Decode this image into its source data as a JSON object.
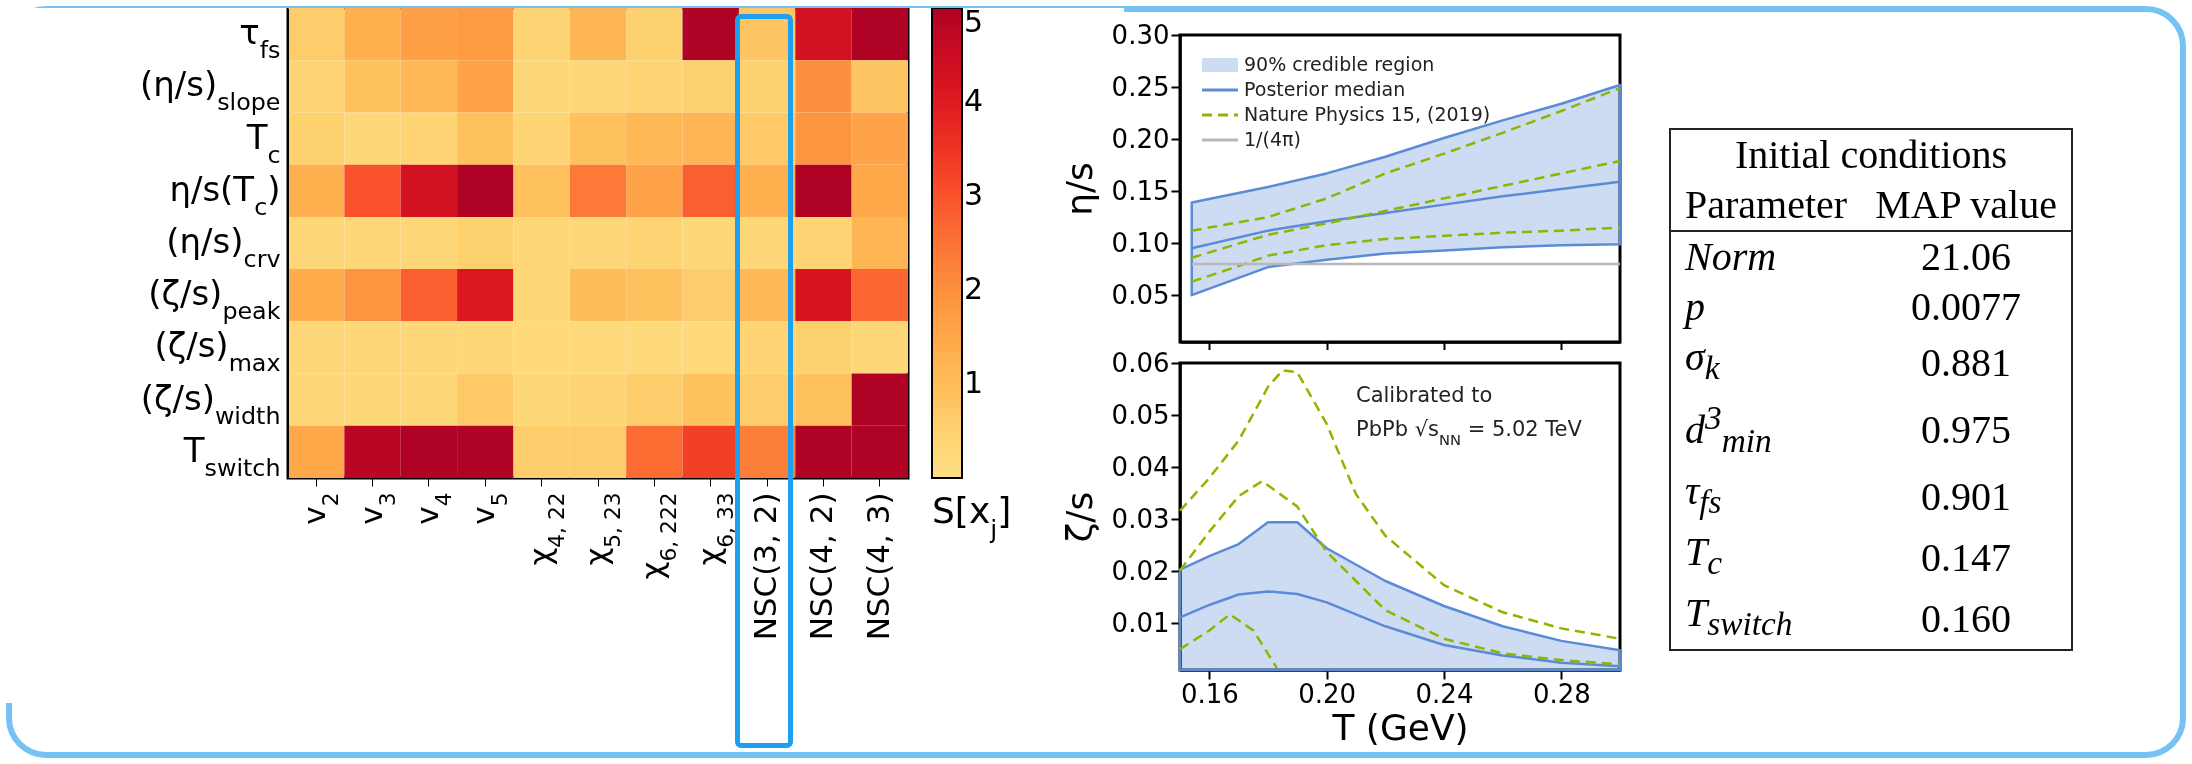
{
  "chart_data": [
    {
      "type": "heatmap",
      "categories": [
        "v$_{2}$",
        "v$_{3}$",
        "v$_{4}$",
        "v$_{5}$",
        "χ$_{4, 22}$",
        "χ$_{5, 23}$",
        "χ$_{6, 222}$",
        "χ$_{6, 33}$",
        "NSC(3, 2)",
        "NSC(4, 2)",
        "NSC(4, 3)"
      ],
      "y_categories": [
        "τ$_{fs}$",
        "(η/s)$_{slope}$",
        "T$_{c}$",
        "η/s(T$_{c}$)",
        "(η/s)$_{crv}$",
        "(ζ/s)$_{peak}$",
        "(ζ/s)$_{max}$",
        "(ζ/s)$_{width}$",
        "T$_{switch}$"
      ],
      "cells": [
        [
          0.6,
          1.3,
          1.7,
          1.8,
          0.4,
          1.2,
          0.5,
          5,
          0.8,
          4.3,
          5
        ],
        [
          0.4,
          0.9,
          1.1,
          1.6,
          0.3,
          0.3,
          0.4,
          0.5,
          0.5,
          2.0,
          0.8
        ],
        [
          0.5,
          0.3,
          0.4,
          0.9,
          0.4,
          0.9,
          1.1,
          1.2,
          0.7,
          1.9,
          1.6
        ],
        [
          1.3,
          3.0,
          4.3,
          5,
          0.9,
          2.4,
          1.6,
          2.8,
          1.3,
          5,
          1.5
        ],
        [
          0.3,
          0.3,
          0.3,
          0.5,
          0.3,
          0.3,
          0.4,
          0.3,
          0.3,
          0.4,
          1.2
        ],
        [
          1.4,
          1.9,
          2.8,
          4.1,
          0.3,
          1.0,
          0.9,
          0.6,
          1.1,
          4.2,
          2.7
        ],
        [
          0.3,
          0.3,
          0.3,
          0.3,
          0.2,
          0.2,
          0.2,
          0.2,
          0.4,
          0.5,
          0.3
        ],
        [
          0.3,
          0.3,
          0.3,
          0.7,
          0.3,
          0.4,
          0.6,
          0.9,
          0.6,
          0.9,
          5
        ],
        [
          1.5,
          4.8,
          5,
          5,
          0.6,
          0.6,
          2.6,
          3.3,
          2.3,
          5,
          5
        ]
      ],
      "clim": [
        0,
        5
      ],
      "cticks": [
        1,
        2,
        3,
        4,
        5
      ],
      "clabel": "S[x$_{j}$]"
    },
    {
      "type": "line",
      "ylabel": "η/s",
      "xlim": [
        0.15,
        0.3
      ],
      "ylim": [
        0.005,
        0.3
      ],
      "xticks": [
        0.16,
        0.2,
        0.24,
        0.28
      ],
      "yticks": [
        0.05,
        {
          "value": 0.1,
          "label": "0.10"
        },
        0.15,
        {
          "value": 0.2,
          "label": "0.20"
        },
        0.25,
        {
          "value": 0.3,
          "label": "0.30"
        }
      ],
      "tick_labels": "y",
      "legend": "top left",
      "annotations": [
        "90% credible region"
      ],
      "series": [
        {
          "name": "Posterior median",
          "type": "line",
          "color": "#5b8bd6",
          "x": [
            0.154,
            0.18,
            0.2,
            0.22,
            0.24,
            0.26,
            0.28,
            0.3
          ],
          "values": [
            0.095,
            0.112,
            0.121,
            0.129,
            0.137,
            0.145,
            0.152,
            0.159
          ],
          "lower": [
            0.05,
            0.077,
            0.084,
            0.09,
            0.093,
            0.096,
            0.098,
            0.099
          ],
          "upper": [
            0.139,
            0.154,
            0.167,
            0.183,
            0.201,
            0.218,
            0.234,
            0.252
          ]
        },
        {
          "name": "Nature Physics 15, (2019)",
          "type": "line",
          "color": "#8db600",
          "line_style": "dashed",
          "x": [
            0.154,
            0.18,
            0.2,
            0.22,
            0.24,
            0.26,
            0.28,
            0.3
          ],
          "values": [
            0.112,
            0.125,
            0.143,
            0.167,
            0.186,
            0.206,
            0.227,
            0.249
          ]
        },
        {
          "type": "line",
          "color": "#8db600",
          "line_style": "dashed",
          "x": [
            0.154,
            0.18,
            0.2,
            0.22,
            0.24,
            0.26,
            0.28,
            0.3
          ],
          "values": [
            0.086,
            0.108,
            0.119,
            0.131,
            0.143,
            0.155,
            0.167,
            0.179
          ]
        },
        {
          "type": "line",
          "color": "#8db600",
          "line_style": "dashed",
          "x": [
            0.154,
            0.17,
            0.18,
            0.2,
            0.22,
            0.24,
            0.26,
            0.28,
            0.3
          ],
          "values": [
            0.063,
            0.078,
            0.088,
            0.098,
            0.104,
            0.107,
            0.11,
            0.112,
            0.115
          ]
        },
        {
          "name": "1/(4π)",
          "type": "line",
          "color": "#b8b8b8",
          "x": [
            0.154,
            0.3
          ],
          "values": [
            0.08,
            0.08
          ]
        }
      ]
    },
    {
      "type": "line",
      "xlabel": "T (GeV)",
      "ylabel": "ζ/s",
      "xlim": [
        0.15,
        0.3
      ],
      "ylim": [
        0.001,
        0.06
      ],
      "xticks": [
        0.16,
        {
          "value": 0.2,
          "label": "0.20"
        },
        0.24,
        0.28
      ],
      "yticks": [
        0.01,
        0.02,
        0.03,
        0.04,
        0.05,
        0.06
      ],
      "annotations": [
        "Calibrated to",
        "PbPb √s$_{NN}$ = 5.02 TeV"
      ],
      "series": [
        {
          "type": "line",
          "color": "#5b8bd6",
          "x": [
            0.15,
            0.16,
            0.17,
            0.18,
            0.19,
            0.2,
            0.22,
            0.24,
            0.26,
            0.28,
            0.3
          ],
          "values": [
            0.0111,
            0.0135,
            0.0155,
            0.0161,
            0.0156,
            0.014,
            0.0094,
            0.0058,
            0.0038,
            0.0024,
            0.0017
          ],
          "lower": [
            0.001,
            0.001,
            0.001,
            0.001,
            0.001,
            0.001,
            0.001,
            0.001,
            0.001,
            0.001,
            0.001
          ],
          "upper": [
            0.0203,
            0.0229,
            0.0252,
            0.0294,
            0.0294,
            0.0244,
            0.0181,
            0.0133,
            0.0094,
            0.0066,
            0.0048
          ]
        },
        {
          "type": "line",
          "color": "#8db600",
          "line_style": "dashed",
          "x": [
            0.15,
            0.16,
            0.17,
            0.18,
            0.185,
            0.19,
            0.2,
            0.21,
            0.22,
            0.24,
            0.26,
            0.28,
            0.3
          ],
          "values": [
            0.0316,
            0.0379,
            0.0451,
            0.0554,
            0.0586,
            0.0582,
            0.0483,
            0.0348,
            0.0268,
            0.0173,
            0.0121,
            0.009,
            0.007
          ]
        },
        {
          "type": "line",
          "color": "#8db600",
          "line_style": "dashed",
          "x": [
            0.15,
            0.16,
            0.17,
            0.178,
            0.19,
            0.2,
            0.22,
            0.24,
            0.26,
            0.28,
            0.3
          ],
          "values": [
            0.0201,
            0.0276,
            0.0344,
            0.0373,
            0.0324,
            0.0237,
            0.0125,
            0.007,
            0.0042,
            0.0029,
            0.0021
          ]
        },
        {
          "type": "line",
          "color": "#8db600",
          "line_style": "dashed",
          "x": [
            0.15,
            0.16,
            0.167,
            0.175,
            0.183
          ],
          "values": [
            0.005,
            0.0086,
            0.0117,
            0.0086,
            0.0014
          ]
        }
      ]
    },
    {
      "type": "other",
      "title": "Initial conditions",
      "annotations": [
        "Parameter",
        "MAP value"
      ],
      "categories": [
        "Norm",
        "p",
        "σ$_{k}$",
        "d$^{3}$$_{min}$",
        "τ$_{fs}$",
        "T$_{c}$",
        "T$_{switch}$"
      ],
      "value_labels": [
        "21.06",
        "0.0077",
        "0.881",
        "0.975",
        "0.901",
        "0.147",
        "0.160"
      ]
    }
  ]
}
